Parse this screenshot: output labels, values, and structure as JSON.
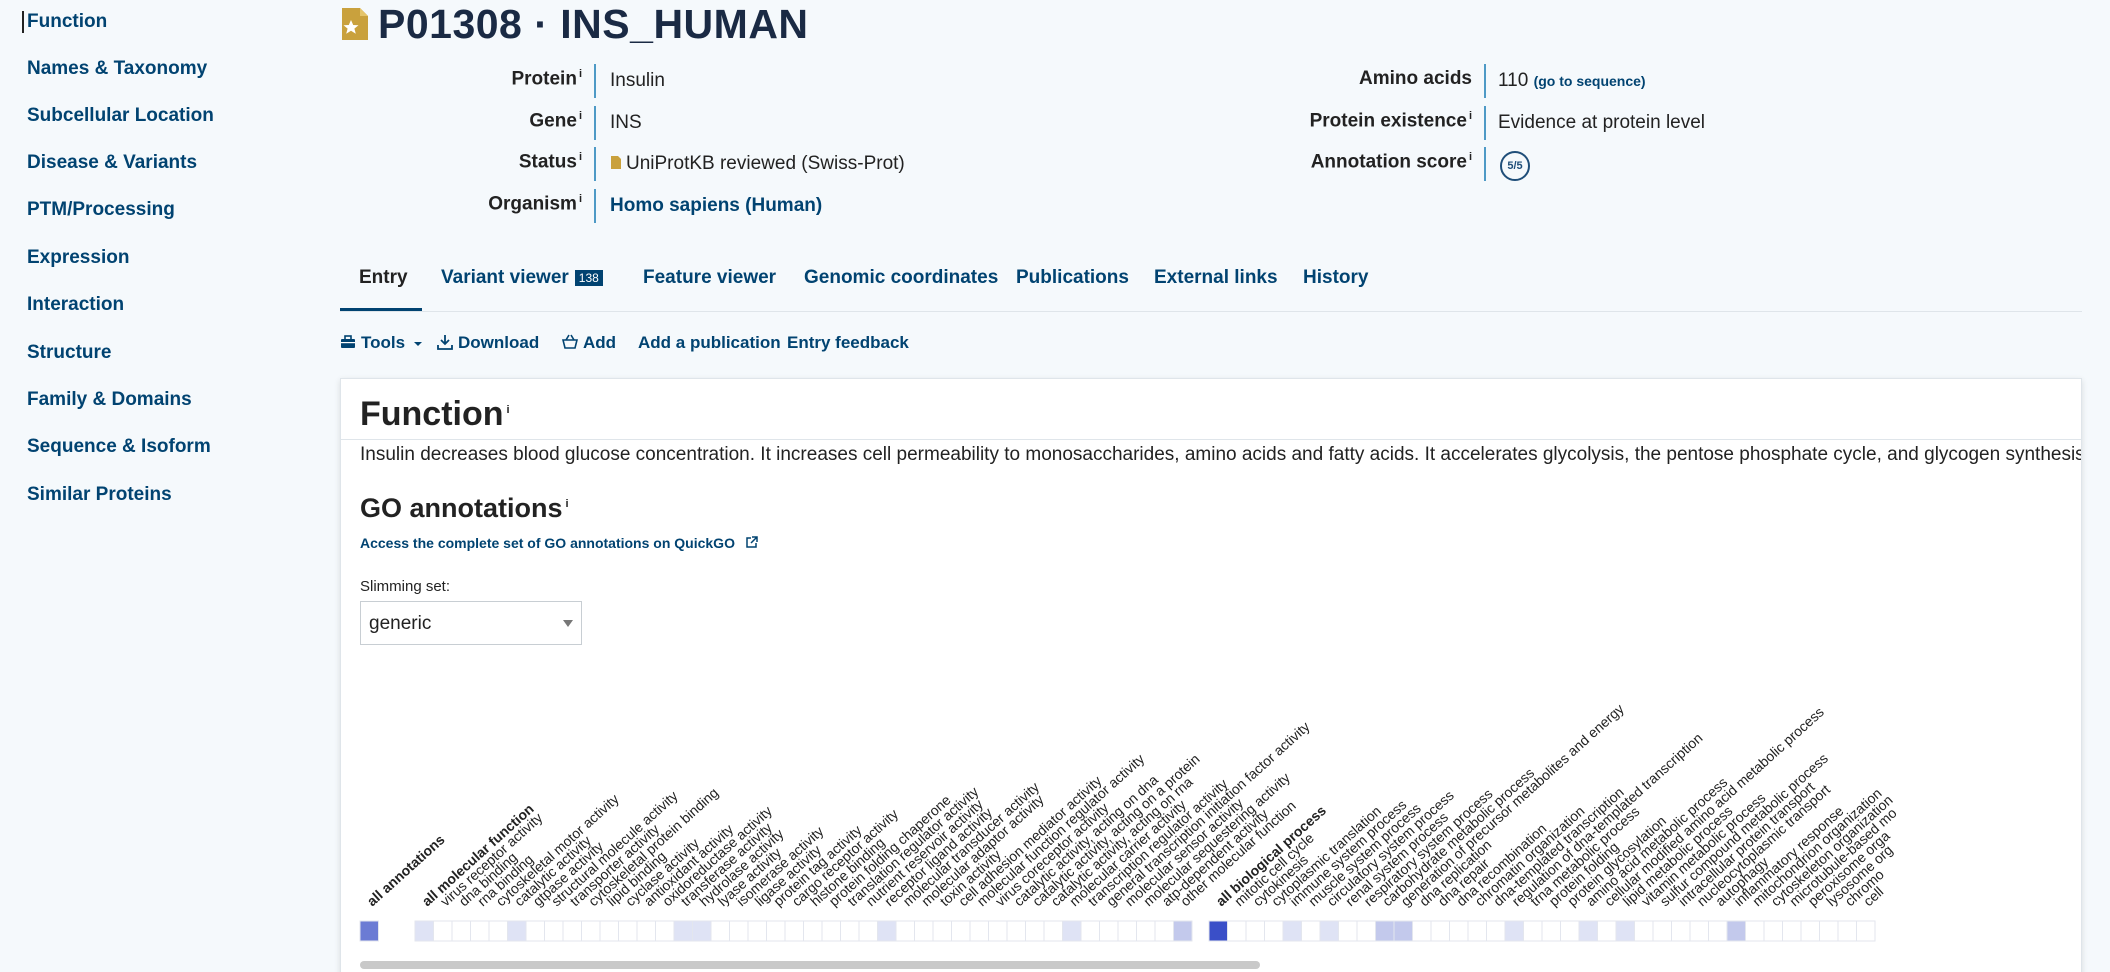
{
  "sidebar": {
    "items": [
      {
        "label": "Function",
        "active": true
      },
      {
        "label": "Names & Taxonomy"
      },
      {
        "label": "Subcellular Location"
      },
      {
        "label": "Disease & Variants"
      },
      {
        "label": "PTM/Processing"
      },
      {
        "label": "Expression"
      },
      {
        "label": "Interaction"
      },
      {
        "label": "Structure"
      },
      {
        "label": "Family & Domains"
      },
      {
        "label": "Sequence & Isoform"
      },
      {
        "label": "Similar Proteins"
      }
    ]
  },
  "header": {
    "title": "P01308 · INS_HUMAN",
    "info_marker": "i",
    "protein_label": "Protein",
    "protein_value": "Insulin",
    "gene_label": "Gene",
    "gene_value": "INS",
    "status_label": "Status",
    "status_value": "UniProtKB reviewed (Swiss-Prot)",
    "organism_label": "Organism",
    "organism_value": "Homo sapiens (Human)",
    "amino_label": "Amino acids",
    "amino_value": "110",
    "amino_link": "(go to sequence)",
    "existence_label": "Protein existence",
    "existence_value": "Evidence at protein level",
    "score_label": "Annotation score",
    "score_value": "5/5"
  },
  "tabs": {
    "entry": "Entry",
    "variant_viewer": "Variant viewer",
    "variant_count": "138",
    "feature_viewer": "Feature viewer",
    "genomic": "Genomic coordinates",
    "publications": "Publications",
    "external": "External links",
    "history": "History"
  },
  "toolbar": {
    "tools": "Tools",
    "download": "Download",
    "add": "Add",
    "add_publication": "Add a publication",
    "feedback": "Entry feedback"
  },
  "function": {
    "title": "Function",
    "text": "Insulin decreases blood glucose concentration. It increases cell permeability to monosaccharides, amino acids and fatty acids. It accelerates glycolysis, the pentose phosphate cycle, and glycogen synthesis in liver.",
    "go_title": "GO annotations",
    "go_link": "Access the complete set of GO annotations on QuickGO",
    "slimming_label": "Slimming set:",
    "slimming_value": "generic"
  },
  "go_terms": {
    "all": {
      "label": "all annotations",
      "level": 3
    },
    "molecular_function": [
      {
        "label": "all molecular function",
        "level": 1,
        "bold": true
      },
      {
        "label": "virus receptor activity",
        "level": 0
      },
      {
        "label": "dna binding",
        "level": 0
      },
      {
        "label": "rna binding",
        "level": 0
      },
      {
        "label": "cytoskeletal motor activity",
        "level": 0
      },
      {
        "label": "catalytic activity",
        "level": 1
      },
      {
        "label": "gtpase activity",
        "level": 0
      },
      {
        "label": "structural molecule activity",
        "level": 0
      },
      {
        "label": "transporter activity",
        "level": 0
      },
      {
        "label": "cytoskeletal protein binding",
        "level": 0
      },
      {
        "label": "lipid binding",
        "level": 0
      },
      {
        "label": "cyclase activity",
        "level": 0
      },
      {
        "label": "antioxidant activity",
        "level": 0
      },
      {
        "label": "oxidoreductase activity",
        "level": 0
      },
      {
        "label": "transferase activity",
        "level": 1
      },
      {
        "label": "hydrolase activity",
        "level": 1
      },
      {
        "label": "lyase activity",
        "level": 0
      },
      {
        "label": "isomerase activity",
        "level": 0
      },
      {
        "label": "ligase activity",
        "level": 0
      },
      {
        "label": "protein tag activity",
        "level": 0
      },
      {
        "label": "cargo receptor activity",
        "level": 0
      },
      {
        "label": "histone binding",
        "level": 0
      },
      {
        "label": "protein folding chaperone",
        "level": 0
      },
      {
        "label": "translation regulator activity",
        "level": 0
      },
      {
        "label": "nutrient reservoir activity",
        "level": 0
      },
      {
        "label": "receptor ligand activity",
        "level": 1
      },
      {
        "label": "molecular transducer activity",
        "level": 0
      },
      {
        "label": "molecular adaptor activity",
        "level": 0
      },
      {
        "label": "toxin activity",
        "level": 0
      },
      {
        "label": "cell adhesion mediator activity",
        "level": 0
      },
      {
        "label": "molecular function regulator activity",
        "level": 0
      },
      {
        "label": "virus coreceptor activity",
        "level": 0
      },
      {
        "label": "catalytic activity, acting on dna",
        "level": 0
      },
      {
        "label": "catalytic activity, acting on a protein",
        "level": 0
      },
      {
        "label": "catalytic activity, acting on rna",
        "level": 0
      },
      {
        "label": "molecular carrier activity",
        "level": 1
      },
      {
        "label": "transcription regulator activity",
        "level": 0
      },
      {
        "label": "general transcription initiation factor activity",
        "level": 0
      },
      {
        "label": "molecular sensor activity",
        "level": 0
      },
      {
        "label": "molecular sequestering activity",
        "level": 0
      },
      {
        "label": "atp-dependent activity",
        "level": 0
      },
      {
        "label": "other molecular function",
        "level": 2
      }
    ],
    "biological_process": [
      {
        "label": "all biological process",
        "level": 4,
        "bold": true
      },
      {
        "label": "mitotic cell cycle",
        "level": 0
      },
      {
        "label": "cytokinesis",
        "level": 0
      },
      {
        "label": "cytoplasmic translation",
        "level": 0
      },
      {
        "label": "immune system process",
        "level": 1
      },
      {
        "label": "muscle system process",
        "level": 0
      },
      {
        "label": "circulatory system process",
        "level": 1
      },
      {
        "label": "renal system process",
        "level": 0
      },
      {
        "label": "respiratory system process",
        "level": 0
      },
      {
        "label": "carbohydrate metabolic process",
        "level": 2
      },
      {
        "label": "generation of precursor metabolites and energy",
        "level": 2
      },
      {
        "label": "dna replication",
        "level": 0
      },
      {
        "label": "dna repair",
        "level": 0
      },
      {
        "label": "dna recombination",
        "level": 0
      },
      {
        "label": "chromatin organization",
        "level": 0
      },
      {
        "label": "dna-templated transcription",
        "level": 0
      },
      {
        "label": "regulation of dna-templated transcription",
        "level": 1
      },
      {
        "label": "trna metabolic process",
        "level": 0
      },
      {
        "label": "protein folding",
        "level": 0
      },
      {
        "label": "protein glycosylation",
        "level": 0
      },
      {
        "label": "amino acid metabolic process",
        "level": 1
      },
      {
        "label": "cellular modified amino acid metabolic process",
        "level": 0
      },
      {
        "label": "lipid metabolic process",
        "level": 1
      },
      {
        "label": "vitamin metabolic process",
        "level": 0
      },
      {
        "label": "sulfur compound metabolic process",
        "level": 0
      },
      {
        "label": "intracellular protein transport",
        "level": 0
      },
      {
        "label": "nucleocytoplasmic transport",
        "level": 0
      },
      {
        "label": "autophagy",
        "level": 0
      },
      {
        "label": "inflammatory response",
        "level": 2
      },
      {
        "label": "mitochondrion organization",
        "level": 0
      },
      {
        "label": "cytoskeleton organization",
        "level": 0
      },
      {
        "label": "microtubule-based mo",
        "level": 0
      },
      {
        "label": "peroxisome orga",
        "level": 0
      },
      {
        "label": "lysosome org",
        "level": 0
      },
      {
        "label": "chromo",
        "level": 0
      },
      {
        "label": "cell",
        "level": 0
      }
    ]
  },
  "colors": {
    "link": "#014371",
    "accent_line": "#4e9ac6",
    "cell_levels": [
      "#ffffff",
      "#dfe3f5",
      "#c3c9ec",
      "#6b7bd4",
      "#3a4fc8"
    ]
  }
}
